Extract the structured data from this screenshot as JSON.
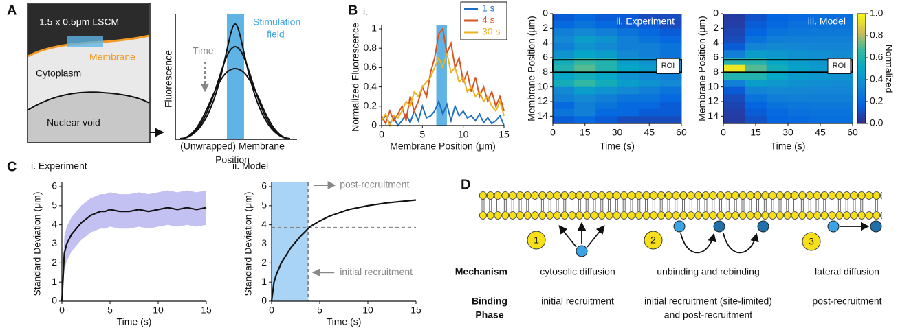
{
  "panel_labels": {
    "a": "A",
    "b": "B",
    "c": "C",
    "d": "D"
  },
  "panel_a": {
    "box_title": "1.5 x 0.5μm LSCM",
    "membrane": "Membrane",
    "cytoplasm": "Cytoplasm",
    "nucleus": "Nuclear void",
    "time": "Time",
    "field": [
      "Stimulation",
      "field"
    ],
    "y_label": "Fluorescence",
    "x_label": [
      "(Unwrapped) Membrane",
      "Position"
    ]
  },
  "chart_data": [
    {
      "type": "line",
      "title": "i.",
      "x_label": "Membrane Position (μm)",
      "y_label": "Normalized Fluorescence",
      "x": [
        0,
        0.5,
        1,
        1.5,
        2,
        2.5,
        3,
        3.5,
        4,
        4.5,
        5,
        5.5,
        6,
        6.5,
        7,
        7.5,
        8,
        8.5,
        9,
        9.5,
        10,
        10.5,
        11,
        11.5,
        12,
        12.5,
        13,
        13.5,
        14,
        14.5,
        15
      ],
      "series": [
        {
          "name": "1 s",
          "color": "#1f6fbf",
          "values": [
            0.05,
            0.1,
            0.02,
            0.08,
            0.0,
            0.05,
            0.12,
            0.03,
            0.15,
            0.05,
            0.2,
            0.08,
            0.1,
            0.15,
            0.25,
            0.12,
            0.22,
            0.05,
            0.2,
            0.1,
            0.15,
            0.08,
            0.1,
            0.05,
            0.12,
            0.03,
            0.08,
            0.02,
            0.05,
            0.1,
            0.0
          ]
        },
        {
          "name": "4 s",
          "color": "#d9541e",
          "values": [
            0.1,
            0.02,
            0.15,
            0.05,
            0.12,
            0.2,
            0.05,
            0.3,
            0.15,
            0.25,
            0.4,
            0.3,
            0.55,
            0.7,
            0.95,
            1.0,
            0.75,
            0.85,
            0.6,
            0.7,
            0.45,
            0.55,
            0.35,
            0.5,
            0.3,
            0.4,
            0.25,
            0.35,
            0.2,
            0.3,
            0.15
          ]
        },
        {
          "name": "30 s",
          "color": "#edb120",
          "values": [
            0.05,
            0.12,
            0.0,
            0.1,
            0.08,
            0.15,
            0.25,
            0.2,
            0.35,
            0.3,
            0.4,
            0.45,
            0.5,
            0.6,
            0.7,
            0.6,
            0.75,
            0.55,
            0.6,
            0.45,
            0.5,
            0.35,
            0.4,
            0.3,
            0.35,
            0.25,
            0.3,
            0.2,
            0.15,
            0.25,
            0.1
          ]
        }
      ],
      "xlim": [
        0,
        15
      ],
      "xticks": [
        0,
        5,
        10,
        15
      ],
      "ylim": [
        0,
        1
      ],
      "yticks": [
        0,
        0.2,
        0.4,
        0.6,
        0.8,
        1
      ],
      "highlight": [
        6.7,
        8
      ],
      "highlight_color": "#5fb4e5",
      "legend": "upper right"
    },
    {
      "type": "heatmap",
      "title": "ii. Experiment",
      "x_label": "Time (s)",
      "y_label": "Membrane Position (μm)",
      "xlim": [
        0,
        60
      ],
      "xticks": [
        0,
        15,
        30,
        45,
        60
      ],
      "ylim": [
        0,
        15
      ],
      "yticks": [
        0,
        2,
        4,
        6,
        8,
        10,
        12,
        14
      ],
      "y_inverted": true,
      "roi": [
        6.3,
        8
      ],
      "roi_label": "ROI",
      "z": [
        [
          0.15,
          0.2,
          0.15,
          0.15,
          0.1,
          0.1
        ],
        [
          0.2,
          0.25,
          0.2,
          0.15,
          0.15,
          0.1
        ],
        [
          0.3,
          0.35,
          0.3,
          0.25,
          0.2,
          0.15
        ],
        [
          0.35,
          0.45,
          0.4,
          0.3,
          0.25,
          0.2
        ],
        [
          0.3,
          0.4,
          0.35,
          0.3,
          0.3,
          0.25
        ],
        [
          0.4,
          0.5,
          0.45,
          0.35,
          0.3,
          0.25
        ],
        [
          0.55,
          0.65,
          0.6,
          0.45,
          0.4,
          0.35
        ],
        [
          0.6,
          0.7,
          0.6,
          0.5,
          0.45,
          0.4
        ],
        [
          0.5,
          0.55,
          0.5,
          0.4,
          0.35,
          0.3
        ],
        [
          0.55,
          0.65,
          0.55,
          0.45,
          0.4,
          0.35
        ],
        [
          0.35,
          0.45,
          0.4,
          0.35,
          0.3,
          0.25
        ],
        [
          0.3,
          0.35,
          0.3,
          0.25,
          0.25,
          0.2
        ],
        [
          0.2,
          0.3,
          0.25,
          0.2,
          0.2,
          0.15
        ],
        [
          0.25,
          0.3,
          0.2,
          0.2,
          0.15,
          0.15
        ],
        [
          0.15,
          0.2,
          0.15,
          0.1,
          0.1,
          0.1
        ]
      ]
    },
    {
      "type": "heatmap",
      "title": "iii. Model",
      "x_label": "Time (s)",
      "y_label": "Membrane Position (μm)",
      "xlim": [
        0,
        60
      ],
      "xticks": [
        0,
        15,
        30,
        45,
        60
      ],
      "ylim": [
        0,
        15
      ],
      "yticks": [
        0,
        2,
        4,
        6,
        8,
        10,
        12,
        14
      ],
      "y_inverted": true,
      "roi": [
        6.3,
        8
      ],
      "roi_label": "ROI",
      "z": [
        [
          0.05,
          0.12,
          0.18,
          0.2,
          0.22,
          0.22
        ],
        [
          0.06,
          0.15,
          0.2,
          0.23,
          0.24,
          0.24
        ],
        [
          0.08,
          0.18,
          0.24,
          0.26,
          0.27,
          0.27
        ],
        [
          0.1,
          0.24,
          0.29,
          0.3,
          0.3,
          0.3
        ],
        [
          0.15,
          0.32,
          0.35,
          0.34,
          0.33,
          0.33
        ],
        [
          0.3,
          0.45,
          0.42,
          0.39,
          0.37,
          0.36
        ],
        [
          0.6,
          0.6,
          0.5,
          0.44,
          0.41,
          0.39
        ],
        [
          0.95,
          0.7,
          0.55,
          0.47,
          0.43,
          0.41
        ],
        [
          0.6,
          0.6,
          0.5,
          0.44,
          0.41,
          0.39
        ],
        [
          0.3,
          0.45,
          0.42,
          0.39,
          0.37,
          0.36
        ],
        [
          0.15,
          0.32,
          0.35,
          0.34,
          0.33,
          0.33
        ],
        [
          0.1,
          0.24,
          0.29,
          0.3,
          0.3,
          0.3
        ],
        [
          0.08,
          0.18,
          0.24,
          0.26,
          0.27,
          0.27
        ],
        [
          0.06,
          0.15,
          0.2,
          0.23,
          0.24,
          0.24
        ],
        [
          0.05,
          0.12,
          0.18,
          0.2,
          0.22,
          0.22
        ]
      ],
      "colorbar": {
        "label": "Normalized",
        "lim": [
          0,
          1
        ],
        "ticks": [
          {
            "value": 0,
            "label": "0.0"
          },
          {
            "value": 0.2,
            "label": "0.2"
          },
          {
            "value": 0.4,
            "label": "0.4"
          },
          {
            "value": 0.6,
            "label": "0.6"
          },
          {
            "value": 0.8,
            "label": "0.8"
          },
          {
            "value": 1,
            "label": "1.0"
          }
        ]
      }
    },
    {
      "type": "line",
      "title": "i. Experiment",
      "x_label": "Time (s)",
      "y_label": "Standard Deviation (μm)",
      "x": [
        0,
        0.25,
        0.5,
        1,
        1.5,
        2,
        2.5,
        3,
        3.5,
        4,
        4.5,
        5,
        6,
        7,
        8,
        9,
        10,
        11,
        12,
        13,
        14,
        15
      ],
      "values": [
        0,
        2.5,
        3.0,
        3.5,
        3.8,
        4.1,
        4.3,
        4.5,
        4.6,
        4.7,
        4.7,
        4.8,
        4.7,
        4.7,
        4.8,
        4.7,
        4.8,
        4.9,
        4.8,
        4.9,
        4.8,
        4.9
      ],
      "lower": [
        0,
        1.6,
        2.1,
        2.6,
        2.9,
        3.2,
        3.4,
        3.6,
        3.7,
        3.8,
        3.8,
        3.9,
        3.8,
        3.8,
        3.9,
        3.8,
        3.9,
        4.0,
        3.9,
        4.0,
        3.9,
        4.0
      ],
      "upper": [
        0,
        3.4,
        3.9,
        4.4,
        4.7,
        5.0,
        5.2,
        5.4,
        5.5,
        5.6,
        5.6,
        5.7,
        5.6,
        5.6,
        5.7,
        5.6,
        5.7,
        5.8,
        5.7,
        5.8,
        5.7,
        5.8
      ],
      "color": "#111111",
      "band_color": "#b9b5f0",
      "xlim": [
        0,
        15
      ],
      "xticks": [
        0,
        5,
        10,
        15
      ],
      "ylim": [
        0,
        6
      ],
      "yticks": [
        0,
        1,
        2,
        3,
        4,
        5,
        6
      ]
    },
    {
      "type": "line",
      "title": "ii. Model",
      "x_label": "Time (s)",
      "y_label": "Standard Deviation (μm)",
      "x": [
        0,
        0.25,
        0.5,
        1,
        1.5,
        2,
        3,
        4,
        5,
        6,
        8,
        10,
        12,
        15
      ],
      "values": [
        0,
        1.0,
        1.4,
        2.0,
        2.4,
        2.8,
        3.4,
        3.9,
        4.2,
        4.45,
        4.8,
        5.0,
        5.15,
        5.3
      ],
      "color": "#111111",
      "highlight": [
        0,
        3.8
      ],
      "highlight_color": "#a9d4f5",
      "hline": 3.85,
      "vline": 3.8,
      "annotations": [
        "post-recruitment",
        "initial recruitment"
      ],
      "xlim": [
        0,
        15
      ],
      "xticks": [
        0,
        5,
        10,
        15
      ],
      "ylim": [
        0,
        6
      ],
      "yticks": [
        0,
        1,
        2,
        3,
        4,
        5,
        6
      ]
    }
  ],
  "panel_d": {
    "steps": [
      "1",
      "2",
      "3"
    ],
    "row_mechanism": "Mechanism",
    "row_phase": [
      "Binding",
      "Phase"
    ],
    "mechanisms": [
      "cytosolic diffusion",
      "unbinding and rebinding",
      "lateral diffusion"
    ],
    "phases": [
      [
        "initial recruitment"
      ],
      [
        "initial recruitment (site-limited)",
        "and post-recruitment"
      ],
      [
        "post-recruitment"
      ]
    ]
  }
}
